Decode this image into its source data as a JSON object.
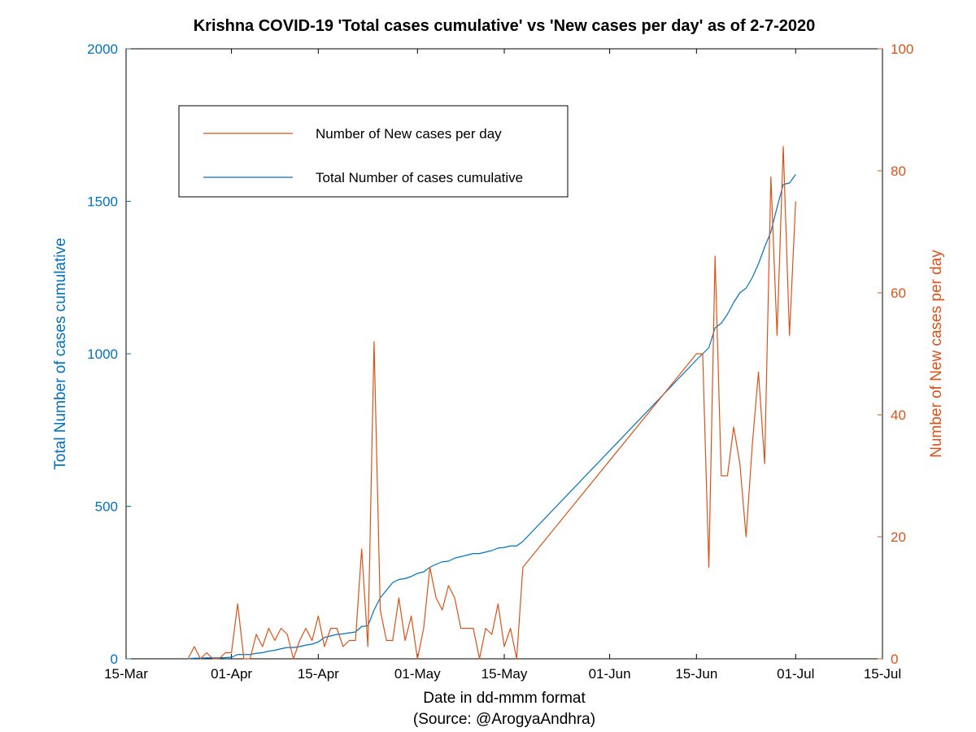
{
  "chart": {
    "type": "dual-axis-line",
    "title": "Krishna COVID-19 'Total cases cumulative' vs 'New cases per day' as of 2-7-2020",
    "title_fontsize": 20,
    "title_color": "#000000",
    "background_color": "#ffffff",
    "plot_border_color": "#000000",
    "plot_border_width": 1,
    "x_axis": {
      "label": "Date in dd-mmm format",
      "sub_label": "(Source: @ArogyaAndhra)",
      "label_fontsize": 19,
      "label_color": "#000000",
      "tick_labels": [
        "15-Mar",
        "01-Apr",
        "15-Apr",
        "01-May",
        "15-May",
        "01-Jun",
        "15-Jun",
        "01-Jul",
        "15-Jul"
      ],
      "tick_positions_days": [
        0,
        17,
        31,
        47,
        61,
        78,
        92,
        108,
        122
      ],
      "range_days": [
        0,
        122
      ],
      "tick_fontsize": 17
    },
    "y_left": {
      "label": "Total Number of cases cumulative",
      "label_fontsize": 19,
      "color": "#0072bd",
      "ticks": [
        0,
        500,
        1000,
        1500,
        2000
      ],
      "range": [
        0,
        2000
      ]
    },
    "y_right": {
      "label": "Number of New cases per day",
      "label_fontsize": 19,
      "color": "#d95319",
      "ticks": [
        0,
        20,
        40,
        60,
        80,
        100
      ],
      "range": [
        0,
        100
      ]
    },
    "legend": {
      "border_color": "#000000",
      "background": "#ffffff",
      "fontsize": 17,
      "items": [
        {
          "label": "Number of New cases per day",
          "color": "#d95319"
        },
        {
          "label": "Total Number of cases cumulative",
          "color": "#0072bd"
        }
      ]
    },
    "series_cumulative": {
      "color": "#0072bd",
      "line_width": 1.2,
      "points": [
        [
          10,
          0
        ],
        [
          11,
          2
        ],
        [
          12,
          2
        ],
        [
          13,
          3
        ],
        [
          14,
          3
        ],
        [
          15,
          3
        ],
        [
          16,
          4
        ],
        [
          17,
          5
        ],
        [
          18,
          14
        ],
        [
          19,
          14
        ],
        [
          20,
          14
        ],
        [
          21,
          18
        ],
        [
          22,
          20
        ],
        [
          23,
          25
        ],
        [
          24,
          28
        ],
        [
          25,
          33
        ],
        [
          26,
          37
        ],
        [
          27,
          37
        ],
        [
          28,
          40
        ],
        [
          29,
          45
        ],
        [
          30,
          48
        ],
        [
          31,
          55
        ],
        [
          32,
          70
        ],
        [
          33,
          75
        ],
        [
          34,
          80
        ],
        [
          35,
          82
        ],
        [
          36,
          85
        ],
        [
          37,
          88
        ],
        [
          38,
          106
        ],
        [
          39,
          108
        ],
        [
          40,
          160
        ],
        [
          41,
          200
        ],
        [
          42,
          225
        ],
        [
          43,
          250
        ],
        [
          44,
          260
        ],
        [
          45,
          263
        ],
        [
          46,
          270
        ],
        [
          47,
          280
        ],
        [
          48,
          285
        ],
        [
          49,
          300
        ],
        [
          50,
          310
        ],
        [
          51,
          318
        ],
        [
          52,
          320
        ],
        [
          53,
          330
        ],
        [
          54,
          335
        ],
        [
          55,
          340
        ],
        [
          56,
          345
        ],
        [
          57,
          345
        ],
        [
          58,
          350
        ],
        [
          59,
          355
        ],
        [
          60,
          363
        ],
        [
          61,
          365
        ],
        [
          62,
          370
        ],
        [
          63,
          370
        ],
        [
          64,
          385
        ],
        [
          92,
          980
        ],
        [
          93,
          1000
        ],
        [
          94,
          1020
        ],
        [
          95,
          1085
        ],
        [
          96,
          1100
        ],
        [
          97,
          1130
        ],
        [
          98,
          1168
        ],
        [
          99,
          1200
        ],
        [
          100,
          1215
        ],
        [
          101,
          1250
        ],
        [
          102,
          1295
        ],
        [
          103,
          1350
        ],
        [
          104,
          1400
        ],
        [
          105,
          1480
        ],
        [
          106,
          1555
        ],
        [
          107,
          1560
        ],
        [
          108,
          1588
        ]
      ]
    },
    "series_new": {
      "color": "#d95319",
      "line_width": 1.2,
      "points": [
        [
          10,
          0
        ],
        [
          11,
          2
        ],
        [
          12,
          0
        ],
        [
          13,
          1
        ],
        [
          14,
          0
        ],
        [
          15,
          0
        ],
        [
          16,
          1
        ],
        [
          17,
          1
        ],
        [
          18,
          9
        ],
        [
          19,
          0
        ],
        [
          20,
          0
        ],
        [
          21,
          4
        ],
        [
          22,
          2
        ],
        [
          23,
          5
        ],
        [
          24,
          3
        ],
        [
          25,
          5
        ],
        [
          26,
          4
        ],
        [
          27,
          0
        ],
        [
          28,
          3
        ],
        [
          29,
          5
        ],
        [
          30,
          3
        ],
        [
          31,
          7
        ],
        [
          32,
          2
        ],
        [
          33,
          5
        ],
        [
          34,
          5
        ],
        [
          35,
          2
        ],
        [
          36,
          3
        ],
        [
          37,
          3
        ],
        [
          38,
          18
        ],
        [
          39,
          2
        ],
        [
          40,
          52
        ],
        [
          41,
          8
        ],
        [
          42,
          3
        ],
        [
          43,
          3
        ],
        [
          44,
          10
        ],
        [
          45,
          3
        ],
        [
          46,
          7
        ],
        [
          47,
          0
        ],
        [
          48,
          5
        ],
        [
          49,
          15
        ],
        [
          50,
          10
        ],
        [
          51,
          8
        ],
        [
          52,
          12
        ],
        [
          53,
          10
        ],
        [
          54,
          5
        ],
        [
          55,
          5
        ],
        [
          56,
          5
        ],
        [
          57,
          0
        ],
        [
          58,
          5
        ],
        [
          59,
          4
        ],
        [
          60,
          9
        ],
        [
          61,
          2
        ],
        [
          62,
          5
        ],
        [
          63,
          0
        ],
        [
          64,
          15
        ],
        [
          92,
          50
        ],
        [
          93,
          50
        ],
        [
          94,
          15
        ],
        [
          95,
          66
        ],
        [
          96,
          30
        ],
        [
          97,
          30
        ],
        [
          98,
          38
        ],
        [
          99,
          32
        ],
        [
          100,
          20
        ],
        [
          101,
          35
        ],
        [
          102,
          47
        ],
        [
          103,
          32
        ],
        [
          104,
          79
        ],
        [
          105,
          53
        ],
        [
          106,
          84
        ],
        [
          107,
          53
        ],
        [
          108,
          75
        ]
      ]
    }
  }
}
